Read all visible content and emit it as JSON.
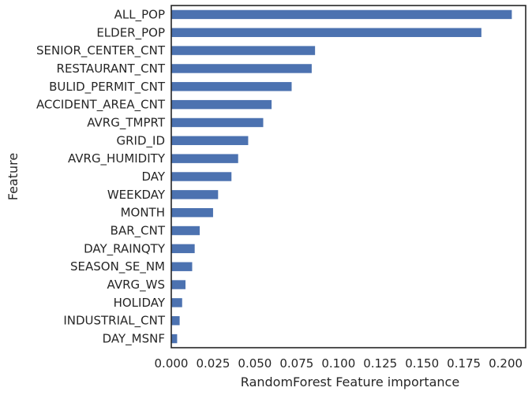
{
  "chart_data": {
    "type": "bar",
    "orientation": "horizontal",
    "xlabel": "RandomForest Feature importance",
    "ylabel": "Feature",
    "xlim": [
      0,
      0.212
    ],
    "x_ticks": [
      "0.000",
      "0.025",
      "0.050",
      "0.075",
      "0.100",
      "0.125",
      "0.150",
      "0.175",
      "0.200"
    ],
    "grid": false,
    "bar_color": "#4c72b0",
    "categories": [
      "ALL_POP",
      "ELDER_POP",
      "SENIOR_CENTER_CNT",
      "RESTAURANT_CNT",
      "BULID_PERMIT_CNT",
      "ACCIDENT_AREA_CNT",
      "AVRG_TMPRT",
      "GRID_ID",
      "AVRG_HUMIDITY",
      "DAY",
      "WEEKDAY",
      "MONTH",
      "BAR_CNT",
      "DAY_RAINQTY",
      "SEASON_SE_NM",
      "AVRG_WS",
      "HOLIDAY",
      "INDUSTRIAL_CNT",
      "DAY_MSNF"
    ],
    "values": [
      0.2037,
      0.1855,
      0.086,
      0.084,
      0.072,
      0.06,
      0.055,
      0.046,
      0.04,
      0.036,
      0.028,
      0.025,
      0.017,
      0.014,
      0.0125,
      0.0085,
      0.0065,
      0.005,
      0.0035
    ]
  }
}
